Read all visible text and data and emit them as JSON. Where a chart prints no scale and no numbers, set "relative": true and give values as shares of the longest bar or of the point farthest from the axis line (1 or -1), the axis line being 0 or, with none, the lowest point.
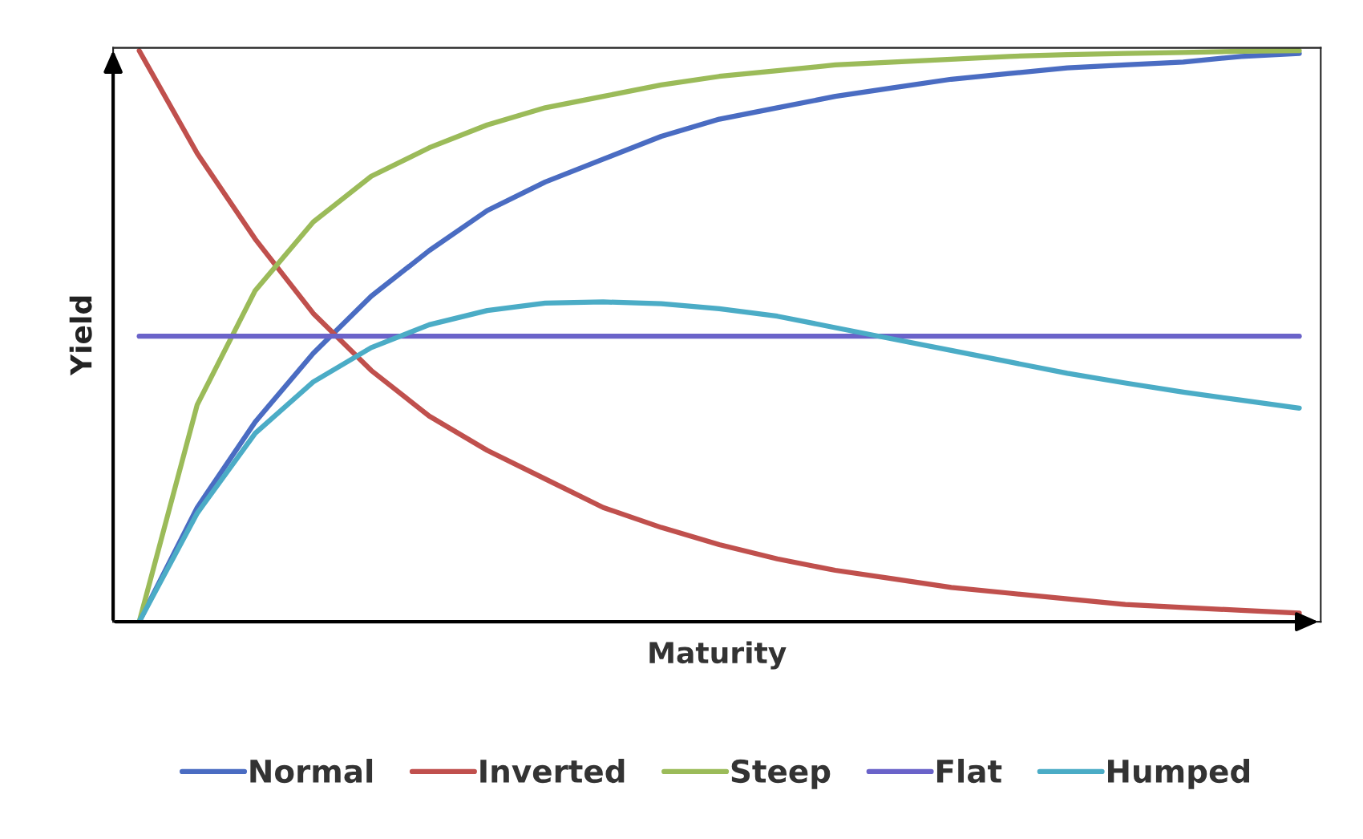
{
  "chart_data": {
    "type": "line",
    "relative": true,
    "xlabel": "Maturity",
    "ylabel": "Yield",
    "legend": "bottom",
    "grid": false,
    "marker": "none",
    "line_style": "solid",
    "categories": [
      null,
      null,
      null,
      null,
      null,
      null,
      null,
      null,
      null,
      null,
      null,
      null,
      null,
      null,
      null,
      null,
      null,
      null,
      null,
      null,
      null
    ],
    "series": [
      {
        "name": "Normal",
        "color": "#4a6cc2",
        "values": [
          0,
          0.2,
          0.35,
          0.47,
          0.57,
          0.65,
          0.72,
          0.77,
          0.81,
          0.85,
          0.88,
          0.9,
          0.92,
          0.935,
          0.95,
          0.96,
          0.97,
          0.975,
          0.98,
          0.99,
          0.995
        ]
      },
      {
        "name": "Inverted",
        "color": "#c0504d",
        "values": [
          1.0,
          0.82,
          0.67,
          0.54,
          0.44,
          0.36,
          0.3,
          0.25,
          0.2,
          0.165,
          0.135,
          0.11,
          0.09,
          0.075,
          0.06,
          0.05,
          0.04,
          0.03,
          0.025,
          0.02,
          0.015
        ]
      },
      {
        "name": "Steep",
        "color": "#9bbb59",
        "values": [
          0,
          0.38,
          0.58,
          0.7,
          0.78,
          0.83,
          0.87,
          0.9,
          0.92,
          0.94,
          0.955,
          0.965,
          0.975,
          0.98,
          0.985,
          0.99,
          0.993,
          0.995,
          0.997,
          0.999,
          1.0
        ]
      },
      {
        "name": "Flat",
        "color": "#6a63c9",
        "values": [
          0.5,
          0.5,
          0.5,
          0.5,
          0.5,
          0.5,
          0.5,
          0.5,
          0.5,
          0.5,
          0.5,
          0.5,
          0.5,
          0.5,
          0.5,
          0.5,
          0.5,
          0.5,
          0.5,
          0.5,
          0.5
        ]
      },
      {
        "name": "Humped",
        "color": "#4bacc6",
        "values": [
          0,
          0.19,
          0.33,
          0.42,
          0.48,
          0.52,
          0.545,
          0.558,
          0.56,
          0.557,
          0.548,
          0.535,
          0.515,
          0.495,
          0.475,
          0.455,
          0.435,
          0.418,
          0.402,
          0.388,
          0.374
        ]
      }
    ]
  }
}
